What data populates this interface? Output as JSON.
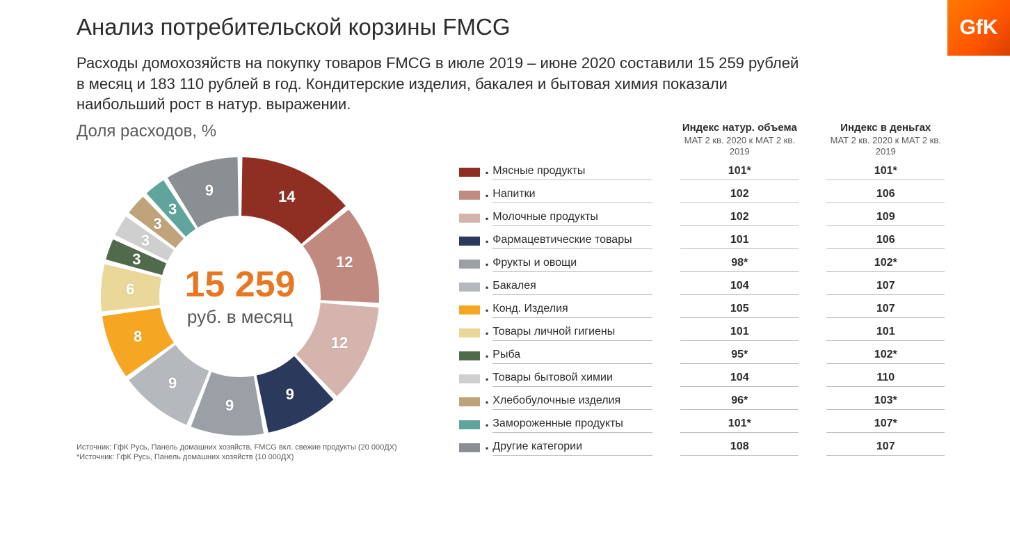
{
  "logo_text": "GfK",
  "title": "Анализ потребительской корзины FMCG",
  "subtitle": "Расходы домохозяйств на покупку товаров FMCG в июле 2019 – июне 2020 составили 15 259 рублей в месяц и 183 110 рублей в год. Кондитерские изделия, бакалея и бытовая химия показали наибольший рост в натур. выражении.",
  "chart": {
    "type": "donut",
    "title": "Доля расходов, %",
    "center_value": "15 259",
    "center_unit": "руб. в месяц",
    "center_value_color": "#e87722",
    "center_unit_color": "#595959",
    "inner_radius_pct": 58,
    "background": "#ffffff",
    "label_color": "#ffffff",
    "label_fontsize": 22,
    "slices": [
      {
        "label": "14",
        "value": 14,
        "color": "#8f2f23"
      },
      {
        "label": "12",
        "value": 12,
        "color": "#c08a80"
      },
      {
        "label": "12",
        "value": 12,
        "color": "#d4b4ad"
      },
      {
        "label": "9",
        "value": 9,
        "color": "#2b3a5c"
      },
      {
        "label": "9",
        "value": 9,
        "color": "#9aa0a6"
      },
      {
        "label": "9",
        "value": 9,
        "color": "#b5b9bd"
      },
      {
        "label": "8",
        "value": 8,
        "color": "#f5a623"
      },
      {
        "label": "6",
        "value": 6,
        "color": "#e9d89a"
      },
      {
        "label": "3",
        "value": 3,
        "color": "#516a4c"
      },
      {
        "label": "3",
        "value": 3,
        "color": "#cfcfcf"
      },
      {
        "label": "3",
        "value": 3,
        "color": "#bfa37a"
      },
      {
        "label": "3",
        "value": 3,
        "color": "#5fa59b"
      },
      {
        "label": "9",
        "value": 9,
        "color": "#8a8f94"
      }
    ]
  },
  "table": {
    "col1_title": "Индекс натур. объема",
    "col1_sub": "MAT 2 кв. 2020 к MAT 2 кв. 2019",
    "col2_title": "Индекс в деньгах",
    "col2_sub": "MAT 2 кв. 2020 к MAT 2 кв. 2019",
    "row_border_color": "#bfbfbf",
    "rows": [
      {
        "swatch": "#8f2f23",
        "label": "Мясные продукты",
        "v1": "101*",
        "v2": "101*"
      },
      {
        "swatch": "#c08a80",
        "label": "Напитки",
        "v1": "102",
        "v2": "106"
      },
      {
        "swatch": "#d4b4ad",
        "label": "Молочные продукты",
        "v1": "102",
        "v2": "109"
      },
      {
        "swatch": "#2b3a5c",
        "label": "Фармацевтические товары",
        "v1": "101",
        "v2": "106"
      },
      {
        "swatch": "#9aa0a6",
        "label": "Фрукты и овощи",
        "v1": "98*",
        "v2": "102*"
      },
      {
        "swatch": "#b5b9bd",
        "label": "Бакалея",
        "v1": "104",
        "v2": "107"
      },
      {
        "swatch": "#f5a623",
        "label": "Конд. Изделия",
        "v1": "105",
        "v2": "107"
      },
      {
        "swatch": "#e9d89a",
        "label": "Товары личной гигиены",
        "v1": "101",
        "v2": "101"
      },
      {
        "swatch": "#516a4c",
        "label": "Рыба",
        "v1": "95*",
        "v2": "102*"
      },
      {
        "swatch": "#cfcfcf",
        "label": "Товары бытовой химии",
        "v1": "104",
        "v2": "110"
      },
      {
        "swatch": "#bfa37a",
        "label": "Хлебобулочные изделия",
        "v1": "96*",
        "v2": "103*"
      },
      {
        "swatch": "#5fa59b",
        "label": "Замороженные продукты",
        "v1": "101*",
        "v2": "107*"
      },
      {
        "swatch": "#8a8f94",
        "label": "Другие категории",
        "v1": "108",
        "v2": "107"
      }
    ]
  },
  "footnotes": {
    "line1": "Источник: ГфК Русь, Панель домашних хозяйств, FMCG вкл. свежие продукты (20 000ДХ)",
    "line2": "*Источник: ГфК Русь, Панель домашних хозяйств (10 000ДХ)"
  }
}
